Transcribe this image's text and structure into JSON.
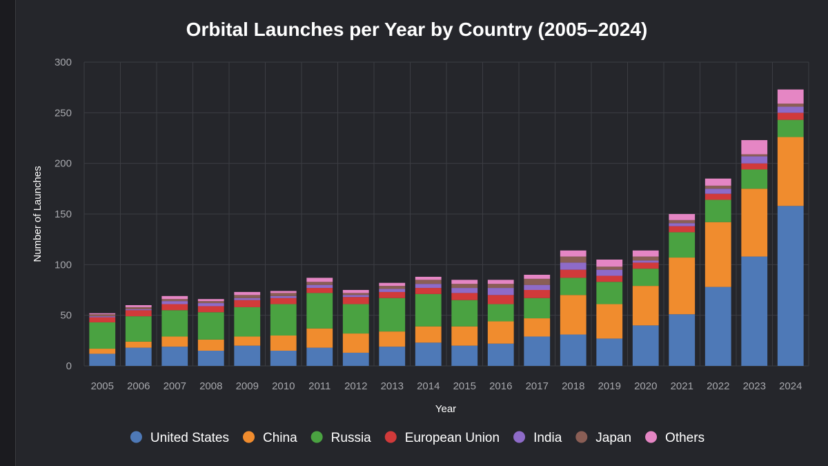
{
  "chart_data": {
    "type": "bar",
    "stacked": true,
    "title": "Orbital Launches per Year by Country (2005–2024)",
    "xlabel": "Year",
    "ylabel": "Number of Launches",
    "ylim": [
      0,
      300
    ],
    "yticks": [
      0,
      50,
      100,
      150,
      200,
      250,
      300
    ],
    "categories": [
      "2005",
      "2006",
      "2007",
      "2008",
      "2009",
      "2010",
      "2011",
      "2012",
      "2013",
      "2014",
      "2015",
      "2016",
      "2017",
      "2018",
      "2019",
      "2020",
      "2021",
      "2022",
      "2023",
      "2024"
    ],
    "grid": true,
    "legend_position": "bottom",
    "series": [
      {
        "name": "United States",
        "color": "#4e79b7",
        "values": [
          12,
          18,
          19,
          15,
          20,
          15,
          18,
          13,
          19,
          23,
          20,
          22,
          29,
          31,
          27,
          40,
          51,
          78,
          108,
          158
        ]
      },
      {
        "name": "China",
        "color": "#f08c2e",
        "values": [
          5,
          6,
          10,
          11,
          9,
          15,
          19,
          19,
          15,
          16,
          19,
          22,
          18,
          39,
          34,
          39,
          56,
          64,
          67,
          68
        ]
      },
      {
        "name": "Russia",
        "color": "#4aa241",
        "values": [
          26,
          25,
          26,
          27,
          29,
          31,
          35,
          29,
          33,
          32,
          26,
          17,
          20,
          17,
          22,
          17,
          25,
          22,
          19,
          17
        ]
      },
      {
        "name": "European Union",
        "color": "#d13a3a",
        "values": [
          5,
          6,
          6,
          6,
          7,
          6,
          5,
          7,
          6,
          6,
          7,
          9,
          8,
          8,
          6,
          6,
          6,
          6,
          6,
          7
        ]
      },
      {
        "name": "India",
        "color": "#8e6bc8",
        "values": [
          1,
          1,
          3,
          3,
          2,
          2,
          3,
          2,
          3,
          4,
          5,
          7,
          5,
          7,
          6,
          2,
          3,
          5,
          7,
          6
        ]
      },
      {
        "name": "Japan",
        "color": "#8a5e55",
        "values": [
          2,
          2,
          2,
          2,
          3,
          3,
          3,
          2,
          3,
          4,
          4,
          4,
          6,
          6,
          3,
          4,
          3,
          3,
          2,
          3
        ]
      },
      {
        "name": "Others",
        "color": "#e586c4",
        "values": [
          1,
          2,
          3,
          2,
          3,
          2,
          4,
          3,
          3,
          3,
          4,
          4,
          4,
          6,
          7,
          6,
          6,
          7,
          14,
          14
        ]
      }
    ]
  }
}
